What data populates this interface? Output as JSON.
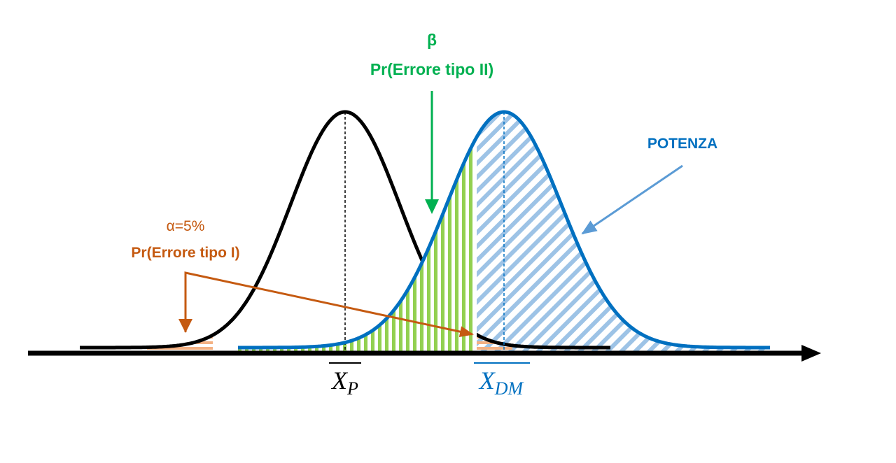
{
  "labels": {
    "beta_symbol": "β",
    "beta_caption": "Pr(Errore tipo II)",
    "power": "POTENZA",
    "alpha_symbol": "α=5%",
    "alpha_caption": "Pr(Errore tipo I)",
    "mean_p": {
      "base": "X",
      "sub": "P"
    },
    "mean_dm": {
      "base": "X",
      "sub": "DM"
    }
  }
}
